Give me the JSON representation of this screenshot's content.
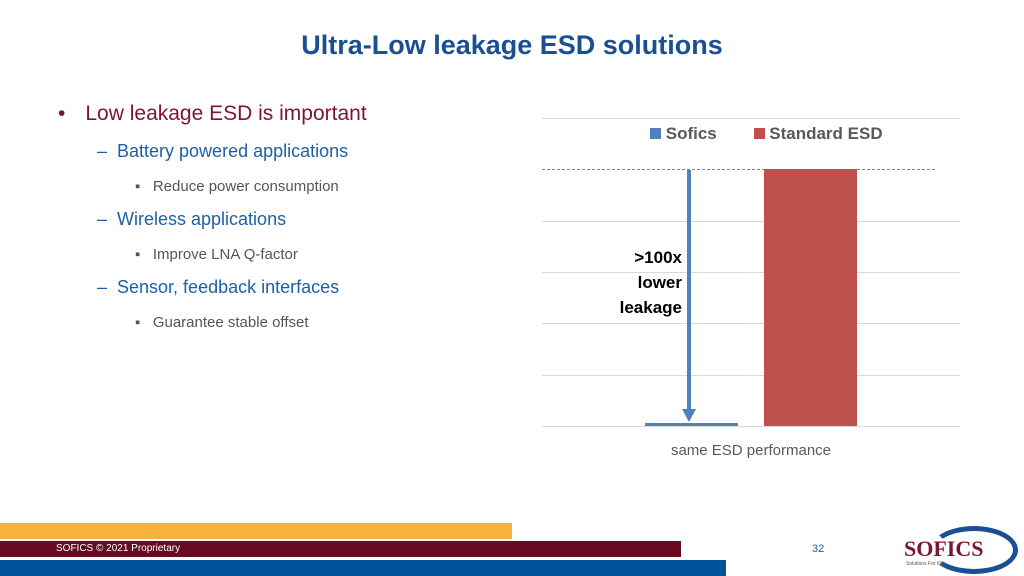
{
  "title": "Ultra-Low leakage ESD solutions",
  "bullets": {
    "main": "Low leakage ESD is important",
    "items": [
      {
        "label": "Battery powered applications",
        "sub": "Reduce power consumption"
      },
      {
        "label": "Wireless applications",
        "sub": "Improve LNA Q-factor"
      },
      {
        "label": "Sensor, feedback interfaces",
        "sub": "Guarantee stable offset"
      }
    ]
  },
  "chart_data": {
    "type": "bar",
    "categories": [
      "same ESD performance"
    ],
    "series": [
      {
        "name": "Sofics",
        "values": [
          0.05
        ],
        "color": "#4f81bd"
      },
      {
        "name": "Standard ESD",
        "values": [
          5
        ],
        "color": "#c0504d"
      }
    ],
    "ylim": [
      0,
      6
    ],
    "xlabel": "same ESD performance",
    "annotation": [
      ">100x",
      "lower",
      "leakage"
    ],
    "legend": "top"
  },
  "footer": {
    "copyright": "SOFICS © 2021 Proprietary",
    "page": "32",
    "logo": "SOFICS",
    "logo_tag": "Solutions For ICs"
  }
}
